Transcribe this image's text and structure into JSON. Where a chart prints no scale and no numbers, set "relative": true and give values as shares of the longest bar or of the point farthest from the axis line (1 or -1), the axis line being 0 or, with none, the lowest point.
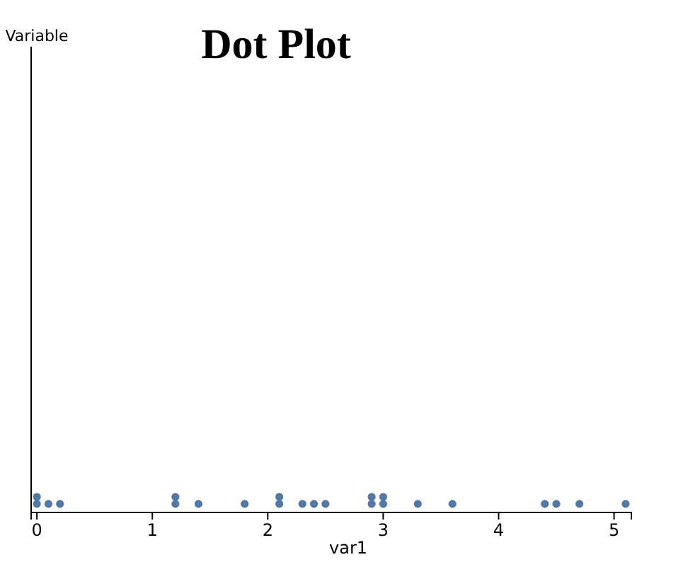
{
  "chart_data": {
    "type": "scatter",
    "title": "Dot Plot",
    "xlabel": "var1",
    "annotations": [
      "Variable"
    ],
    "relative": true,
    "marker": "circle",
    "grid": false,
    "xlim": [
      -0.05,
      5.15
    ],
    "xticks": [
      0,
      1,
      2,
      3,
      4,
      5
    ],
    "series": [
      {
        "color": "#4f79a6",
        "x": [
          0,
          0,
          0.1,
          0.2,
          1.2,
          1.2,
          1.4,
          1.8,
          2.1,
          2.1,
          2.3,
          2.4,
          2.5,
          2.9,
          2.9,
          3.0,
          3.0,
          3.3,
          3.6,
          4.4,
          4.5,
          4.7,
          5.1
        ],
        "values": [
          0.55,
          1,
          0.55,
          0.55,
          0.55,
          1,
          0.55,
          0.55,
          0.55,
          1,
          0.55,
          0.55,
          0.55,
          0.55,
          1,
          0.55,
          1,
          0.55,
          0.55,
          0.55,
          0.55,
          0.55,
          0.55
        ]
      }
    ]
  }
}
